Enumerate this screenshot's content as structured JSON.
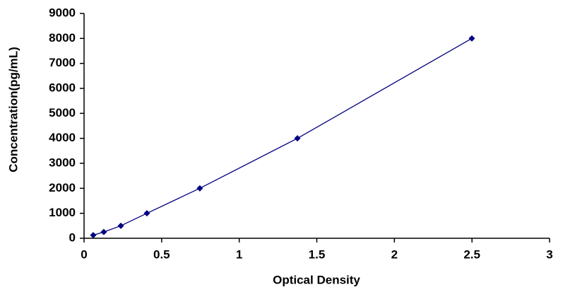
{
  "chart_data": {
    "type": "line",
    "x_label": "Optical Density",
    "y_label": "Concentration(pg/mL)",
    "x": [
      0.059,
      0.127,
      0.237,
      0.405,
      0.746,
      1.375,
      2.499
    ],
    "values": [
      125,
      250,
      500,
      1000,
      2000,
      4000,
      8000
    ],
    "color": "#000080",
    "xlim": [
      0,
      3
    ],
    "xticks": [
      0,
      0.5,
      1,
      1.5,
      2,
      2.5,
      3
    ],
    "ylim": [
      0,
      9000
    ],
    "yticks": [
      0,
      1000,
      2000,
      3000,
      4000,
      5000,
      6000,
      7000,
      8000,
      9000
    ],
    "grid": false
  }
}
